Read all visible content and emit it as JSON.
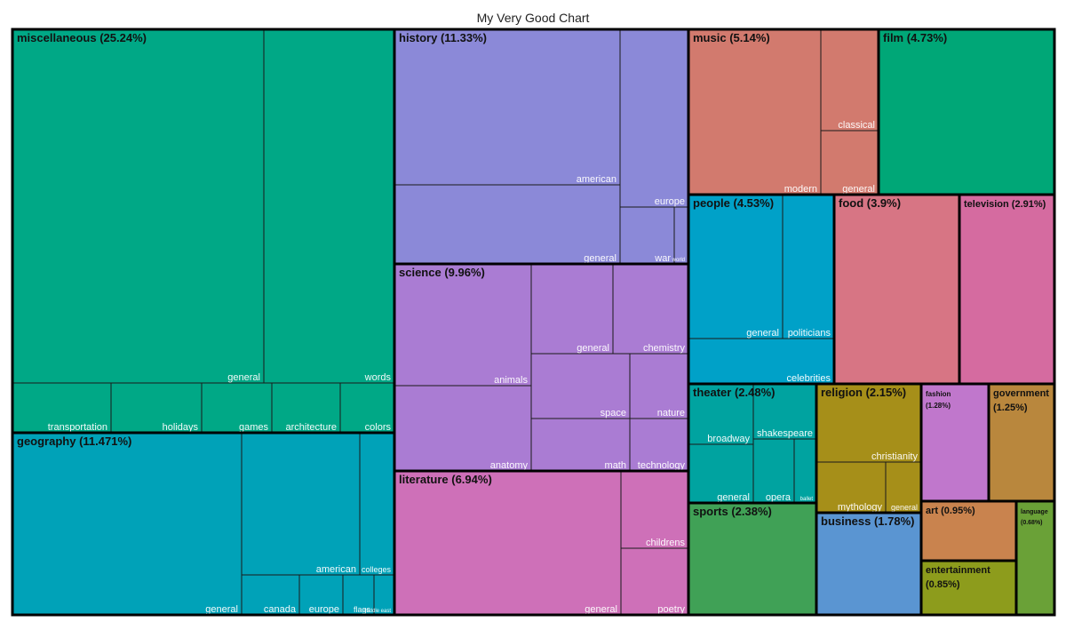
{
  "chart_data": {
    "type": "treemap",
    "title": "My Very Good Chart",
    "groups": [
      {
        "name": "miscellaneous",
        "pct_label": "(25.24%)",
        "value": 25.24,
        "color": "#00A886",
        "children": [
          {
            "name": "general",
            "value": 11.0
          },
          {
            "name": "words",
            "value": 6.6
          },
          {
            "name": "transportation",
            "value": 1.6
          },
          {
            "name": "holidays",
            "value": 1.5
          },
          {
            "name": "games",
            "value": 1.15
          },
          {
            "name": "architecture",
            "value": 1.15
          },
          {
            "name": "colors",
            "value": 0.9
          }
        ]
      },
      {
        "name": "geography",
        "pct_label": "(11.471%)",
        "value": 11.471,
        "color": "#00A2B8",
        "children": [
          {
            "name": "general",
            "value": 5.9
          },
          {
            "name": "american",
            "value": 2.5
          },
          {
            "name": "colleges",
            "value": 0.9
          },
          {
            "name": "canada",
            "value": 0.75
          },
          {
            "name": "europe",
            "value": 0.55
          },
          {
            "name": "flags",
            "value": 0.4
          },
          {
            "name": "middle east",
            "value": 0.25
          }
        ]
      },
      {
        "name": "history",
        "pct_label": "(11.33%)",
        "value": 11.33,
        "color": "#8B89D8",
        "children": [
          {
            "name": "american",
            "value": 5.8
          },
          {
            "name": "general",
            "value": 3.4
          },
          {
            "name": "europe",
            "value": 1.4
          },
          {
            "name": "war",
            "value": 0.55
          },
          {
            "name": "world",
            "value": 0.1
          }
        ]
      },
      {
        "name": "science",
        "pct_label": "(9.96%)",
        "value": 9.96,
        "color": "#AA7CD3",
        "children": [
          {
            "name": "animals",
            "value": 2.6
          },
          {
            "name": "anatomy",
            "value": 2.3
          },
          {
            "name": "general",
            "value": 1.1
          },
          {
            "name": "chemistry",
            "value": 1.0
          },
          {
            "name": "space",
            "value": 1.05
          },
          {
            "name": "nature",
            "value": 0.6
          },
          {
            "name": "math",
            "value": 0.75
          },
          {
            "name": "technology",
            "value": 0.55
          }
        ]
      },
      {
        "name": "literature",
        "pct_label": "(6.94%)",
        "value": 6.94,
        "color": "#CE70B8",
        "children": [
          {
            "name": "general",
            "value": 5.0
          },
          {
            "name": "childrens",
            "value": 1.2
          },
          {
            "name": "poetry",
            "value": 1.0
          }
        ]
      },
      {
        "name": "music",
        "pct_label": "(5.14%)",
        "value": 5.14,
        "color": "#D27A6E",
        "children": [
          {
            "name": "modern",
            "value": 3.5
          },
          {
            "name": "classical",
            "value": 1.0
          },
          {
            "name": "general",
            "value": 0.6
          }
        ]
      },
      {
        "name": "film",
        "pct_label": "(4.73%)",
        "value": 4.73,
        "color": "#00A777",
        "children": []
      },
      {
        "name": "people",
        "pct_label": "(4.53%)",
        "value": 4.53,
        "color": "#00A1C8",
        "children": [
          {
            "name": "general",
            "value": 2.2
          },
          {
            "name": "politicians",
            "value": 1.2
          },
          {
            "name": "celebrities",
            "value": 1.1
          }
        ]
      },
      {
        "name": "food",
        "pct_label": "(3.9%)",
        "value": 3.9,
        "color": "#D77584",
        "children": []
      },
      {
        "name": "television",
        "pct_label": "(2.91%)",
        "value": 2.91,
        "color": "#D56BA0",
        "children": []
      },
      {
        "name": "theater",
        "pct_label": "(2.48%)",
        "value": 2.48,
        "color": "#00A3A0",
        "children": [
          {
            "name": "broadway",
            "value": 0.8
          },
          {
            "name": "shakespeare",
            "value": 0.45
          },
          {
            "name": "general",
            "value": 0.7
          },
          {
            "name": "opera",
            "value": 0.35
          },
          {
            "name": "ballet",
            "value": 0.18
          }
        ]
      },
      {
        "name": "religion",
        "pct_label": "(2.15%)",
        "value": 2.15,
        "color": "#A68F19",
        "children": [
          {
            "name": "christianity",
            "value": 1.35
          },
          {
            "name": "mythology",
            "value": 0.6
          },
          {
            "name": "general",
            "value": 0.2
          }
        ]
      },
      {
        "name": "fashion",
        "pct_label": "(1.28%)",
        "value": 1.28,
        "color": "#C077CC",
        "children": []
      },
      {
        "name": "government",
        "pct_label": "(1.25%)",
        "value": 1.25,
        "color": "#B9873D",
        "children": []
      },
      {
        "name": "sports",
        "pct_label": "(2.38%)",
        "value": 2.38,
        "color": "#40A156",
        "children": []
      },
      {
        "name": "business",
        "pct_label": "(1.78%)",
        "value": 1.78,
        "color": "#5A95D2",
        "children": []
      },
      {
        "name": "art",
        "pct_label": "(0.95%)",
        "value": 0.95,
        "color": "#C9834E",
        "children": []
      },
      {
        "name": "entertainment",
        "pct_label": "(0.85%)",
        "value": 0.85,
        "color": "#8D9C1C",
        "children": []
      },
      {
        "name": "language",
        "pct_label": "(0.68%)",
        "value": 0.68,
        "color": "#6AA137",
        "children": []
      }
    ]
  }
}
